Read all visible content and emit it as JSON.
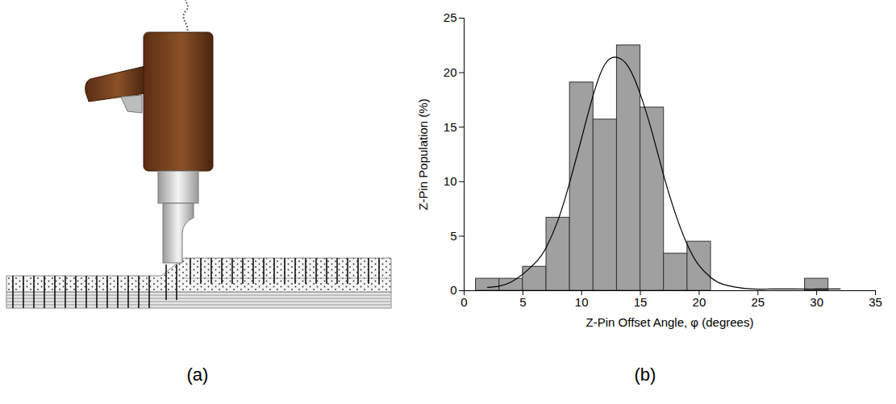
{
  "diagram": {
    "panel_label": "(a)"
  },
  "chart_data": {
    "type": "histogram",
    "panel_label": "(b)",
    "xlabel": "Z-Pin Offset Angle, φ (degrees)",
    "ylabel": "Z-Pin Population (%)",
    "bins": [
      1,
      3,
      5,
      7,
      9,
      11,
      13,
      15,
      17,
      19,
      21,
      23,
      25,
      27,
      29,
      31
    ],
    "values": [
      1.1,
      1.1,
      2.2,
      6.7,
      19.1,
      15.7,
      22.5,
      16.8,
      3.4,
      4.5,
      0,
      0,
      0,
      0,
      1.1
    ],
    "color": "#a0a0a0",
    "xlim": [
      0,
      35
    ],
    "xticks": [
      0,
      5,
      10,
      15,
      20,
      25,
      30,
      35
    ],
    "ylim": [
      0,
      25
    ],
    "yticks": [
      0,
      5,
      10,
      15,
      20,
      25
    ],
    "series": [
      {
        "type": "line",
        "color": "#000000",
        "x": [
          2,
          4,
          6,
          7,
          8,
          9,
          10,
          11,
          12,
          13,
          14,
          15,
          16,
          17,
          18,
          19,
          20,
          21,
          22,
          24,
          26,
          28,
          30,
          32
        ],
        "values": [
          0.3,
          0.8,
          2.5,
          4,
          6.5,
          10,
          14,
          18,
          20.8,
          21.4,
          20.5,
          18,
          14.5,
          10.5,
          7,
          4.2,
          2.3,
          1.2,
          0.6,
          0.2,
          0.15,
          0.15,
          0.15,
          0.15
        ]
      }
    ]
  }
}
